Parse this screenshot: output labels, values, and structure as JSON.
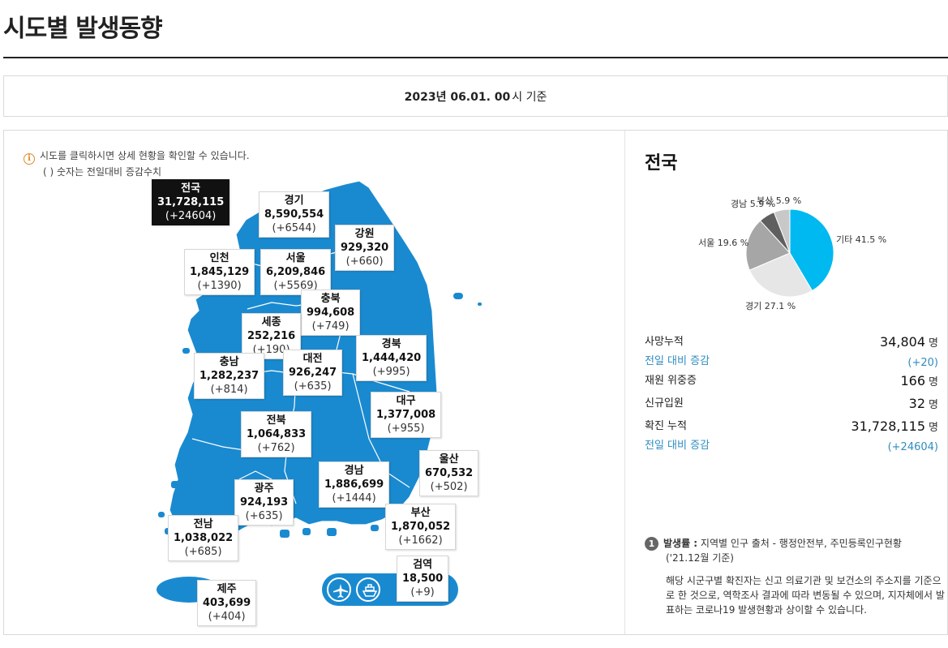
{
  "page_title": "시도별 발생동향",
  "date": {
    "bold": "2023년 06.01. 00",
    "suffix": "시 기준"
  },
  "notice": {
    "line1": "시도를 클릭하시면 상세 현황을 확인할 수 있습니다.",
    "line2": "( ) 숫자는 전일대비 증감수치"
  },
  "regions": {
    "national": {
      "name": "전국",
      "total": "31,728,115",
      "diff": "(+24604)"
    },
    "gyeonggi": {
      "name": "경기",
      "total": "8,590,554",
      "diff": "(+6544)"
    },
    "gangwon": {
      "name": "강원",
      "total": "929,320",
      "diff": "(+660)"
    },
    "incheon": {
      "name": "인천",
      "total": "1,845,129",
      "diff": "(+1390)"
    },
    "seoul": {
      "name": "서울",
      "total": "6,209,846",
      "diff": "(+5569)"
    },
    "chungbuk": {
      "name": "충북",
      "total": "994,608",
      "diff": "(+749)"
    },
    "sejong": {
      "name": "세종",
      "total": "252,216",
      "diff": "(+190)"
    },
    "chungnam": {
      "name": "충남",
      "total": "1,282,237",
      "diff": "(+814)"
    },
    "daejeon": {
      "name": "대전",
      "total": "926,247",
      "diff": "(+635)"
    },
    "gyeongbuk": {
      "name": "경북",
      "total": "1,444,420",
      "diff": "(+995)"
    },
    "daegu": {
      "name": "대구",
      "total": "1,377,008",
      "diff": "(+955)"
    },
    "jeonbuk": {
      "name": "전북",
      "total": "1,064,833",
      "diff": "(+762)"
    },
    "ulsan": {
      "name": "울산",
      "total": "670,532",
      "diff": "(+502)"
    },
    "gyeongnam": {
      "name": "경남",
      "total": "1,886,699",
      "diff": "(+1444)"
    },
    "gwangju": {
      "name": "광주",
      "total": "924,193",
      "diff": "(+635)"
    },
    "busan": {
      "name": "부산",
      "total": "1,870,052",
      "diff": "(+1662)"
    },
    "jeonnam": {
      "name": "전남",
      "total": "1,038,022",
      "diff": "(+685)"
    },
    "quarantine": {
      "name": "검역",
      "total": "18,500",
      "diff": "(+9)"
    },
    "jeju": {
      "name": "제주",
      "total": "403,699",
      "diff": "(+404)"
    }
  },
  "transport_icons": [
    "airplane-icon",
    "ship-icon"
  ],
  "side": {
    "title": "전국",
    "pie_labels": {
      "gita": "기타 41.5 %",
      "gyeonggi": "경기 27.1 %",
      "seoul": "서울 19.6 %",
      "gyeongnam": "경남 5.9 %",
      "busan": "부산 5.9 %"
    },
    "stats": [
      {
        "label": "사망누적",
        "value": "34,804",
        "unit": "명"
      },
      {
        "label": "전일 대비 증감",
        "value": "(+20)"
      },
      {
        "label": "재원 위중증",
        "value": "166",
        "unit": "명"
      },
      {
        "label": "신규입원",
        "value": "32",
        "unit": "명"
      },
      {
        "label": "확진 누적",
        "value": "31,728,115",
        "unit": "명"
      },
      {
        "label": "전일 대비 증감",
        "value": "(+24604)"
      }
    ],
    "footnote": {
      "badge": "1",
      "bold": "발생률 :",
      "text": " 지역별 인구 출처 - 행정안전부, 주민등록인구현황",
      "line2": "('21.12월 기준)",
      "body": "해당 시군구별 확진자는 신고 의료기관 및 보건소의 주소지를 기준으로 한 것으로, 역학조사 결과에 따라 변동될 수 있으며, 지자체에서 발표하는 코로나19 발생현황과 상이할 수 있습니다."
    }
  },
  "chart_data": {
    "type": "pie",
    "categories": [
      "기타",
      "경기",
      "서울",
      "경남",
      "부산"
    ],
    "values": [
      41.5,
      27.1,
      19.6,
      5.9,
      5.9
    ],
    "colors": [
      "#00b9f1",
      "#e6e6e6",
      "#a6a6a6",
      "#5f5f5f",
      "#c8c8c8"
    ]
  },
  "colors": {
    "map_fill": "#1a8ad0",
    "accent_blue": "#2f8dc0",
    "notice_orange": "#e08a2a"
  }
}
